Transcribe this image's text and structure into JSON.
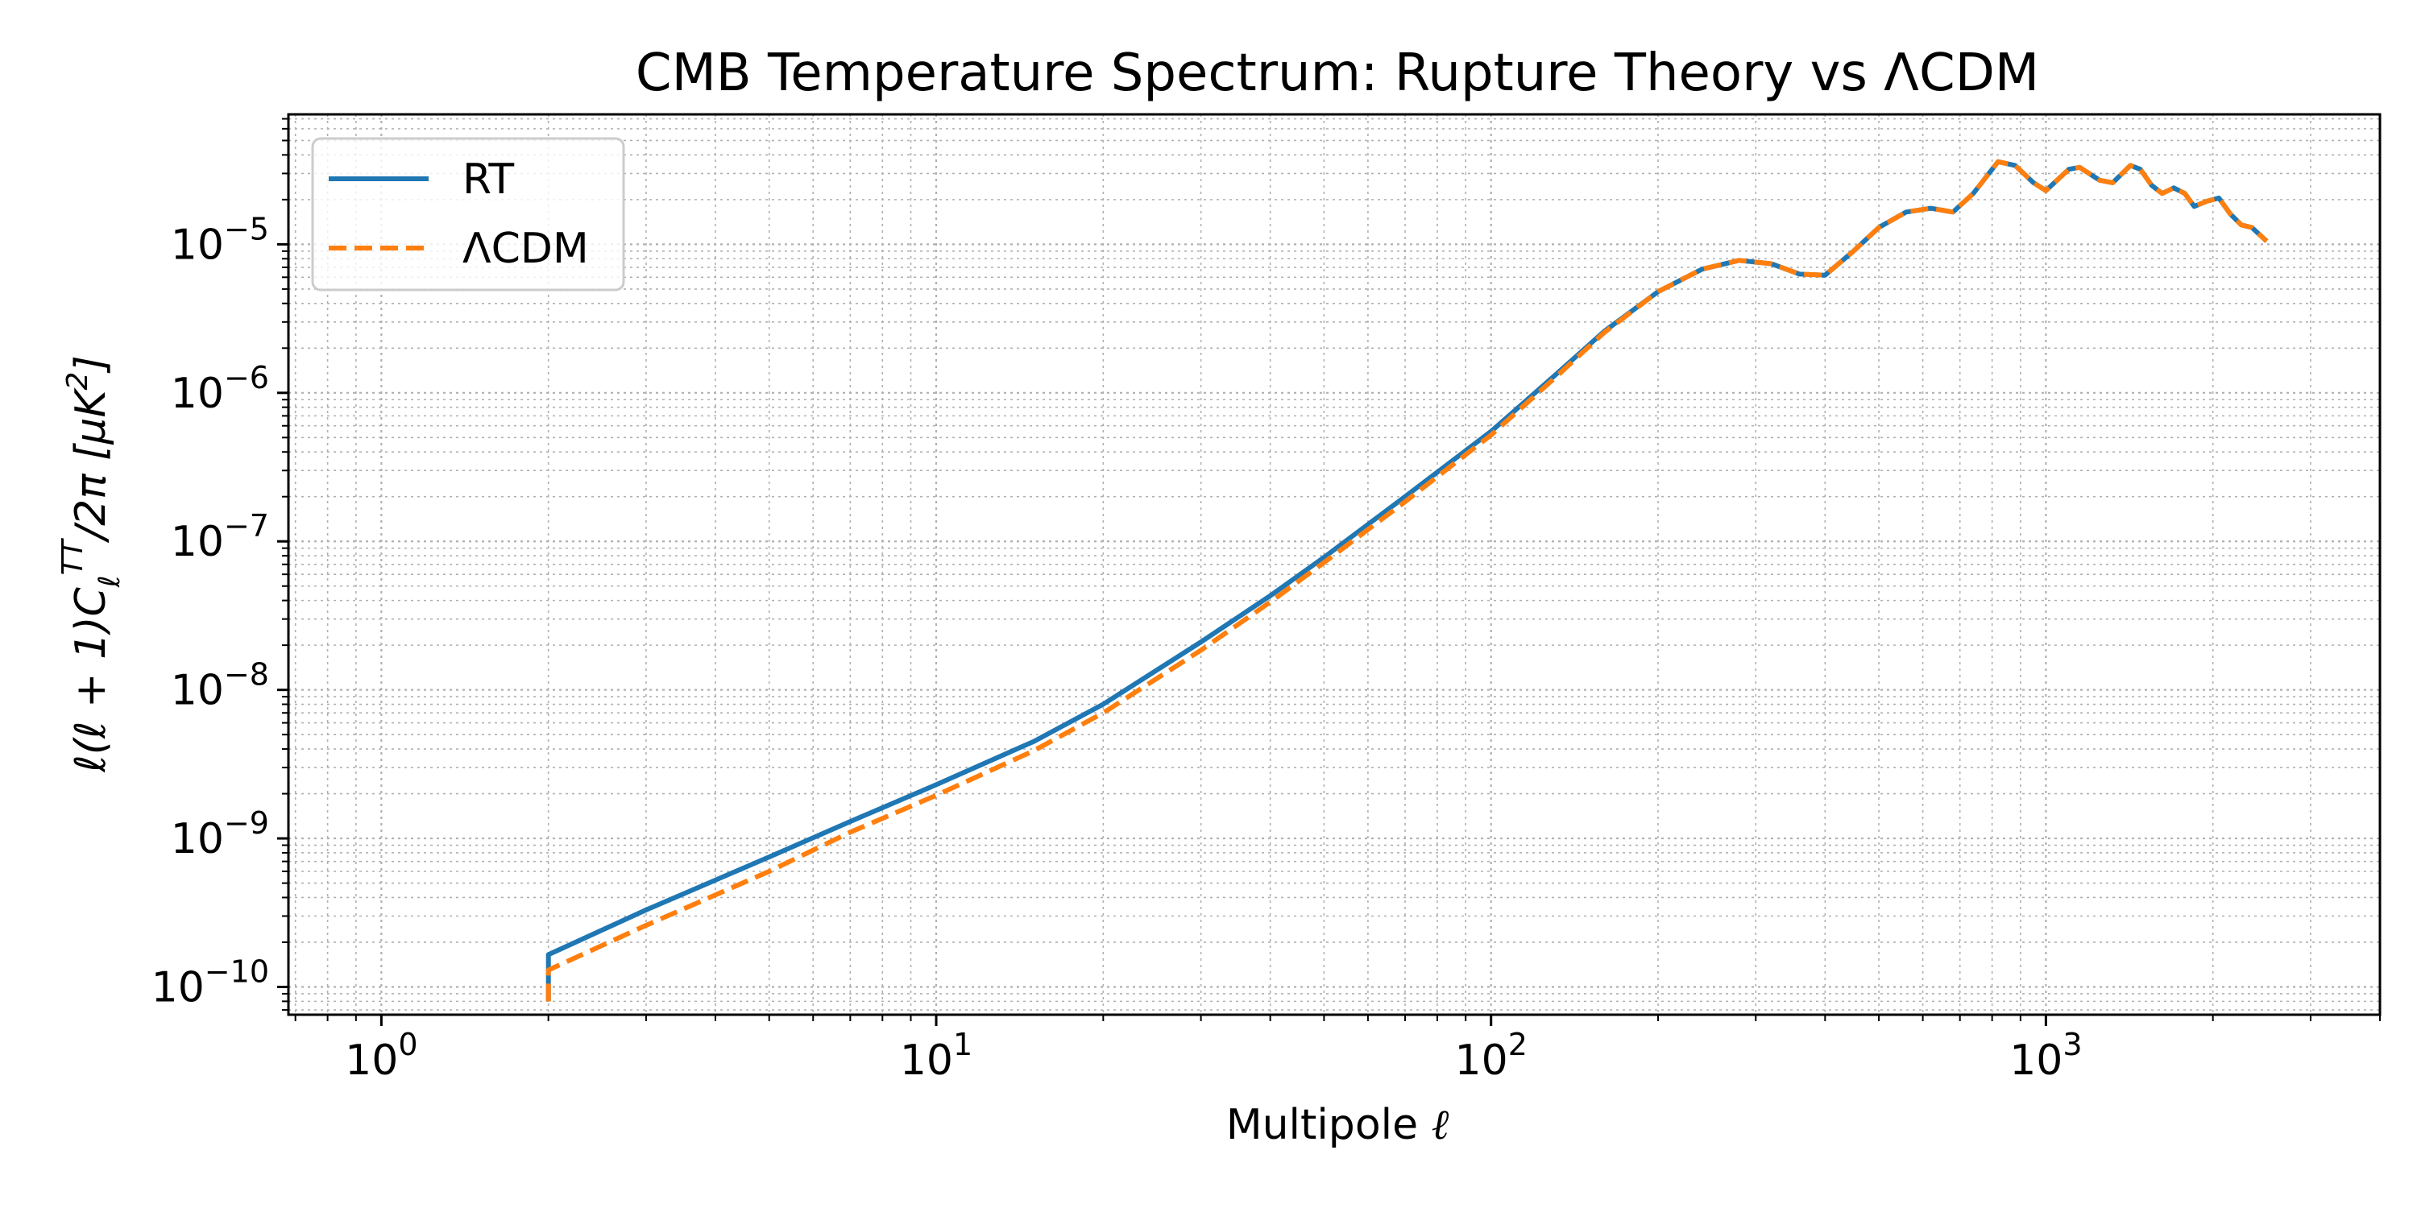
{
  "chart_data": {
    "type": "line",
    "title": "CMB Temperature Spectrum: Rupture Theory vs ΛCDM",
    "xlabel": "Multipole ℓ",
    "ylabel": "ℓ(ℓ + 1)C_ℓ^TT/2π [μK²]",
    "xscale": "log",
    "yscale": "log",
    "xlim": [
      0.68,
      4000
    ],
    "ylim": [
      6.5e-11,
      7.5e-05
    ],
    "grid": true,
    "legend_position": "upper left",
    "x_ticks": [
      {
        "value": 1,
        "base": "10",
        "exp": "0"
      },
      {
        "value": 10,
        "base": "10",
        "exp": "1"
      },
      {
        "value": 100,
        "base": "10",
        "exp": "2"
      },
      {
        "value": 1000,
        "base": "10",
        "exp": "3"
      }
    ],
    "y_ticks": [
      {
        "value": 1e-10,
        "base": "10",
        "exp": "−10"
      },
      {
        "value": 1e-09,
        "base": "10",
        "exp": "−9"
      },
      {
        "value": 1e-08,
        "base": "10",
        "exp": "−8"
      },
      {
        "value": 1e-07,
        "base": "10",
        "exp": "−7"
      },
      {
        "value": 1e-06,
        "base": "10",
        "exp": "−6"
      },
      {
        "value": 1e-05,
        "base": "10",
        "exp": "−5"
      }
    ],
    "series": [
      {
        "name": "RT",
        "color": "#1f77b4",
        "style": "solid",
        "points": [
          [
            2,
            8e-11
          ],
          [
            2,
            1.65e-10
          ],
          [
            3,
            3.3e-10
          ],
          [
            5,
            7.5e-10
          ],
          [
            7,
            1.3e-09
          ],
          [
            10,
            2.3e-09
          ],
          [
            15,
            4.5e-09
          ],
          [
            20,
            8e-09
          ],
          [
            30,
            2.1e-08
          ],
          [
            40,
            4.3e-08
          ],
          [
            50,
            7.8e-08
          ],
          [
            70,
            2e-07
          ],
          [
            100,
            5.5e-07
          ],
          [
            130,
            1.3e-06
          ],
          [
            160,
            2.6e-06
          ],
          [
            200,
            4.8e-06
          ],
          [
            240,
            6.8e-06
          ],
          [
            280,
            7.8e-06
          ],
          [
            320,
            7.4e-06
          ],
          [
            360,
            6.3e-06
          ],
          [
            400,
            6.2e-06
          ],
          [
            450,
            9e-06
          ],
          [
            500,
            1.3e-05
          ],
          [
            560,
            1.65e-05
          ],
          [
            620,
            1.75e-05
          ],
          [
            680,
            1.65e-05
          ],
          [
            740,
            2.2e-05
          ],
          [
            820,
            3.6e-05
          ],
          [
            880,
            3.4e-05
          ],
          [
            950,
            2.6e-05
          ],
          [
            1000,
            2.3e-05
          ],
          [
            1100,
            3.2e-05
          ],
          [
            1150,
            3.3e-05
          ],
          [
            1250,
            2.7e-05
          ],
          [
            1320,
            2.6e-05
          ],
          [
            1420,
            3.4e-05
          ],
          [
            1480,
            3.2e-05
          ],
          [
            1550,
            2.5e-05
          ],
          [
            1620,
            2.2e-05
          ],
          [
            1700,
            2.4e-05
          ],
          [
            1780,
            2.2e-05
          ],
          [
            1850,
            1.8e-05
          ],
          [
            1950,
            1.95e-05
          ],
          [
            2050,
            2.05e-05
          ],
          [
            2150,
            1.6e-05
          ],
          [
            2250,
            1.35e-05
          ],
          [
            2350,
            1.3e-05
          ],
          [
            2500,
            1.05e-05
          ]
        ]
      },
      {
        "name": "ΛCDM",
        "color": "#ff7f0e",
        "style": "dashed",
        "points": [
          [
            2,
            8e-11
          ],
          [
            2,
            1.3e-10
          ],
          [
            3,
            2.6e-10
          ],
          [
            5,
            6e-10
          ],
          [
            7,
            1.1e-09
          ],
          [
            10,
            1.95e-09
          ],
          [
            15,
            3.9e-09
          ],
          [
            20,
            7e-09
          ],
          [
            30,
            1.85e-08
          ],
          [
            40,
            3.9e-08
          ],
          [
            50,
            7.2e-08
          ],
          [
            70,
            1.85e-07
          ],
          [
            100,
            5.2e-07
          ],
          [
            130,
            1.25e-06
          ],
          [
            160,
            2.55e-06
          ],
          [
            200,
            4.8e-06
          ],
          [
            240,
            6.8e-06
          ],
          [
            280,
            7.8e-06
          ],
          [
            320,
            7.4e-06
          ],
          [
            360,
            6.3e-06
          ],
          [
            400,
            6.2e-06
          ],
          [
            450,
            9e-06
          ],
          [
            500,
            1.3e-05
          ],
          [
            560,
            1.65e-05
          ],
          [
            620,
            1.75e-05
          ],
          [
            680,
            1.65e-05
          ],
          [
            740,
            2.2e-05
          ],
          [
            820,
            3.6e-05
          ],
          [
            880,
            3.4e-05
          ],
          [
            950,
            2.6e-05
          ],
          [
            1000,
            2.3e-05
          ],
          [
            1100,
            3.2e-05
          ],
          [
            1150,
            3.3e-05
          ],
          [
            1250,
            2.7e-05
          ],
          [
            1320,
            2.6e-05
          ],
          [
            1420,
            3.4e-05
          ],
          [
            1480,
            3.2e-05
          ],
          [
            1550,
            2.5e-05
          ],
          [
            1620,
            2.2e-05
          ],
          [
            1700,
            2.4e-05
          ],
          [
            1780,
            2.2e-05
          ],
          [
            1850,
            1.8e-05
          ],
          [
            1950,
            1.95e-05
          ],
          [
            2050,
            2.05e-05
          ],
          [
            2150,
            1.6e-05
          ],
          [
            2250,
            1.35e-05
          ],
          [
            2350,
            1.3e-05
          ],
          [
            2500,
            1.05e-05
          ]
        ]
      }
    ]
  }
}
